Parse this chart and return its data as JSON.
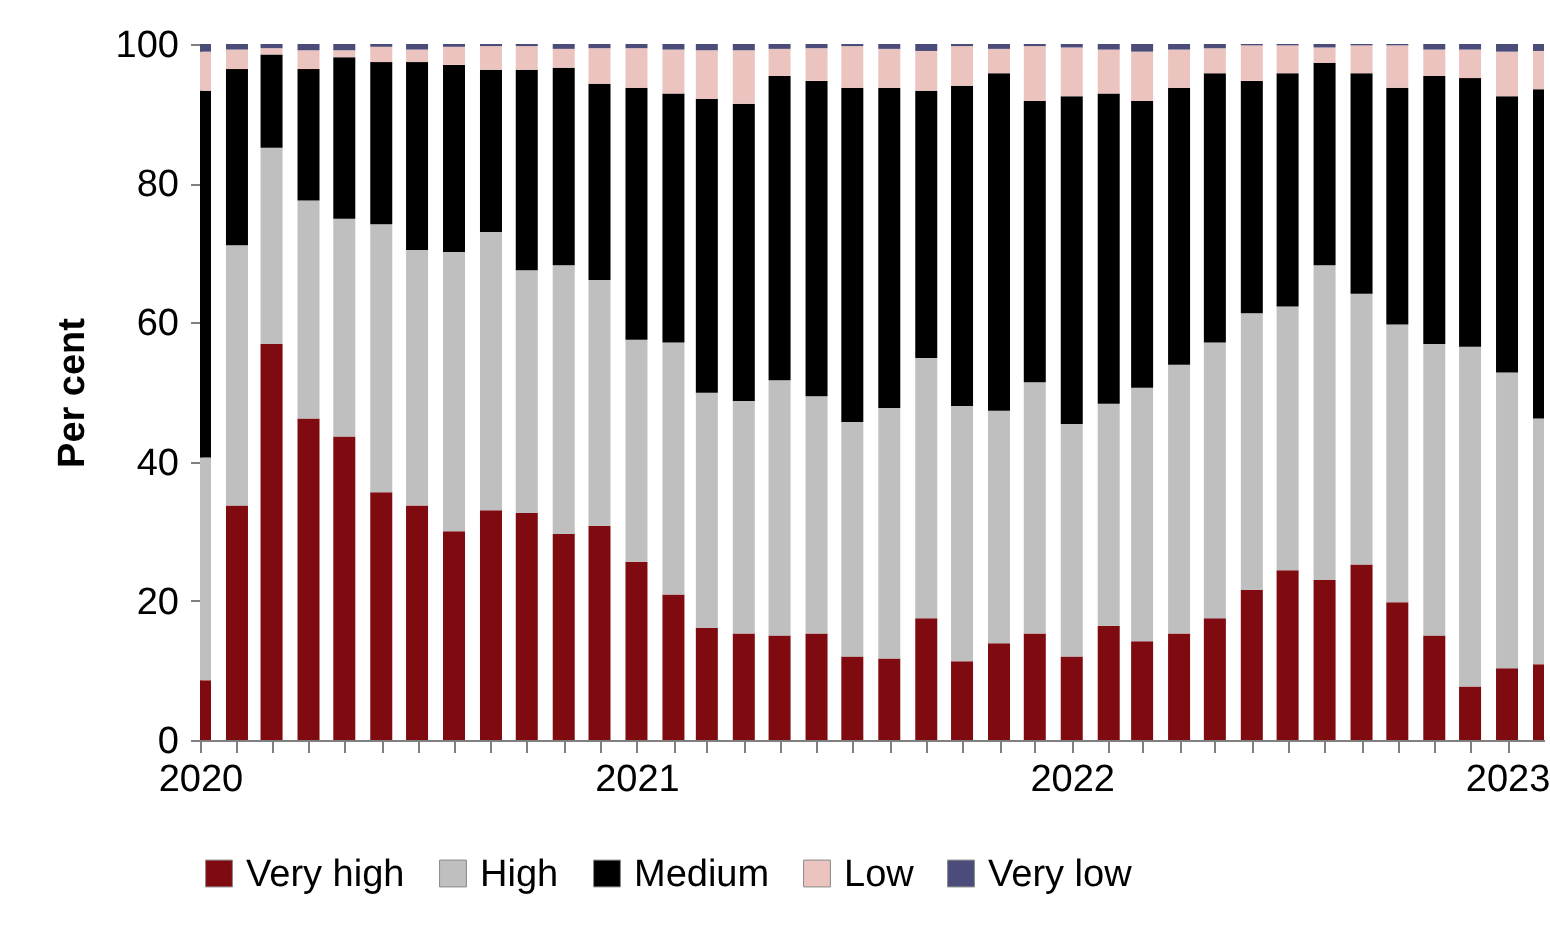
{
  "chart_data": {
    "type": "bar",
    "stacked": true,
    "ylabel": "Per cent",
    "ylim": [
      0,
      100
    ],
    "yticks": [
      0,
      20,
      40,
      60,
      80,
      100
    ],
    "xlim": [
      "2020-01",
      "2023-02"
    ],
    "xticks": [
      {
        "value": "2020-01",
        "label": "2020"
      },
      {
        "value": "2020-02",
        "label": null
      },
      {
        "value": "2020-03",
        "label": null
      },
      {
        "value": "2020-04",
        "label": null
      },
      {
        "value": "2020-05",
        "label": null
      },
      {
        "value": "2020-06",
        "label": null
      },
      {
        "value": "2020-07",
        "label": null
      },
      {
        "value": "2020-08",
        "label": null
      },
      {
        "value": "2020-09",
        "label": null
      },
      {
        "value": "2020-10",
        "label": null
      },
      {
        "value": "2020-11",
        "label": null
      },
      {
        "value": "2020-12",
        "label": null
      },
      {
        "value": "2021-01",
        "label": "2021"
      },
      {
        "value": "2021-02",
        "label": null
      },
      {
        "value": "2021-03",
        "label": null
      },
      {
        "value": "2021-04",
        "label": null
      },
      {
        "value": "2021-05",
        "label": null
      },
      {
        "value": "2021-06",
        "label": null
      },
      {
        "value": "2021-07",
        "label": null
      },
      {
        "value": "2021-08",
        "label": null
      },
      {
        "value": "2021-09",
        "label": null
      },
      {
        "value": "2021-10",
        "label": null
      },
      {
        "value": "2021-11",
        "label": null
      },
      {
        "value": "2021-12",
        "label": null
      },
      {
        "value": "2022-01",
        "label": "2022"
      },
      {
        "value": "2022-02",
        "label": null
      },
      {
        "value": "2022-03",
        "label": null
      },
      {
        "value": "2022-04",
        "label": null
      },
      {
        "value": "2022-05",
        "label": null
      },
      {
        "value": "2022-06",
        "label": null
      },
      {
        "value": "2022-07",
        "label": null
      },
      {
        "value": "2022-08",
        "label": null
      },
      {
        "value": "2022-09",
        "label": null
      },
      {
        "value": "2022-10",
        "label": null
      },
      {
        "value": "2022-11",
        "label": null
      },
      {
        "value": "2022-12",
        "label": null
      },
      {
        "value": "2023-01",
        "label": "2023"
      }
    ],
    "x": [
      "2020-01",
      "2020-02",
      "2020-03",
      "2020-04",
      "2020-05",
      "2020-06",
      "2020-07",
      "2020-08",
      "2020-09",
      "2020-10",
      "2020-11",
      "2020-12",
      "2021-01",
      "2021-02",
      "2021-03",
      "2021-04",
      "2021-05",
      "2021-06",
      "2021-07",
      "2021-08",
      "2021-09",
      "2021-10",
      "2021-11",
      "2021-12",
      "2022-01",
      "2022-02",
      "2022-03",
      "2022-04",
      "2022-05",
      "2022-06",
      "2022-07",
      "2022-08",
      "2022-09",
      "2022-10",
      "2022-11",
      "2022-12",
      "2023-01",
      "2023-02"
    ],
    "legend": "bottom",
    "series": [
      {
        "name": "Very high",
        "color": "#7f0a10",
        "values": [
          8.6,
          33.7,
          56.9,
          46.2,
          43.6,
          35.6,
          33.7,
          30.0,
          33.0,
          32.6,
          29.6,
          30.8,
          25.6,
          20.9,
          16.1,
          15.3,
          15.0,
          15.3,
          12.0,
          11.7,
          17.5,
          11.3,
          13.9,
          15.3,
          12.0,
          16.4,
          14.2,
          15.3,
          17.5,
          21.6,
          24.4,
          23.0,
          25.2,
          19.8,
          15.0,
          7.7,
          10.3,
          10.9
        ]
      },
      {
        "name": "High",
        "color": "#bfbfbf",
        "values": [
          32.0,
          37.4,
          28.2,
          31.3,
          31.3,
          38.5,
          36.7,
          40.1,
          40.0,
          34.9,
          38.6,
          35.3,
          31.9,
          36.2,
          33.8,
          33.4,
          36.7,
          34.1,
          33.7,
          36.0,
          37.4,
          36.7,
          33.4,
          36.1,
          33.4,
          31.9,
          36.4,
          38.6,
          39.6,
          39.7,
          37.9,
          45.2,
          38.9,
          39.9,
          41.9,
          48.8,
          42.5,
          35.3
        ]
      },
      {
        "name": "Medium",
        "color": "#000000",
        "values": [
          52.7,
          25.3,
          13.4,
          18.9,
          23.2,
          23.3,
          27.0,
          26.9,
          23.3,
          28.8,
          28.4,
          28.2,
          36.2,
          35.8,
          42.2,
          42.7,
          43.7,
          45.3,
          48.0,
          46.0,
          38.4,
          46.0,
          48.5,
          40.4,
          47.1,
          44.6,
          41.2,
          39.8,
          38.7,
          33.4,
          33.5,
          29.1,
          31.7,
          34.0,
          38.5,
          38.6,
          39.7,
          47.3
        ]
      },
      {
        "name": "Low",
        "color": "#ecc4bf",
        "values": [
          5.6,
          2.8,
          0.9,
          2.7,
          1.0,
          2.2,
          1.8,
          2.6,
          3.4,
          3.4,
          2.7,
          5.1,
          5.7,
          6.3,
          7.0,
          7.7,
          3.9,
          4.7,
          6.0,
          5.6,
          5.7,
          5.7,
          3.5,
          7.9,
          7.0,
          6.3,
          7.1,
          5.5,
          3.6,
          5.1,
          4.0,
          2.2,
          4.0,
          6.1,
          3.8,
          4.1,
          6.4,
          5.5
        ]
      },
      {
        "name": "Very low",
        "color": "#4b4c7a",
        "values": [
          1.1,
          0.8,
          0.6,
          0.9,
          0.9,
          0.4,
          0.8,
          0.4,
          0.3,
          0.3,
          0.7,
          0.6,
          0.6,
          0.8,
          0.9,
          0.9,
          0.7,
          0.6,
          0.3,
          0.7,
          1.0,
          0.3,
          0.7,
          0.3,
          0.5,
          0.8,
          1.1,
          0.8,
          0.6,
          0.2,
          0.2,
          0.5,
          0.2,
          0.2,
          0.8,
          0.8,
          1.1,
          1.0
        ]
      }
    ]
  }
}
